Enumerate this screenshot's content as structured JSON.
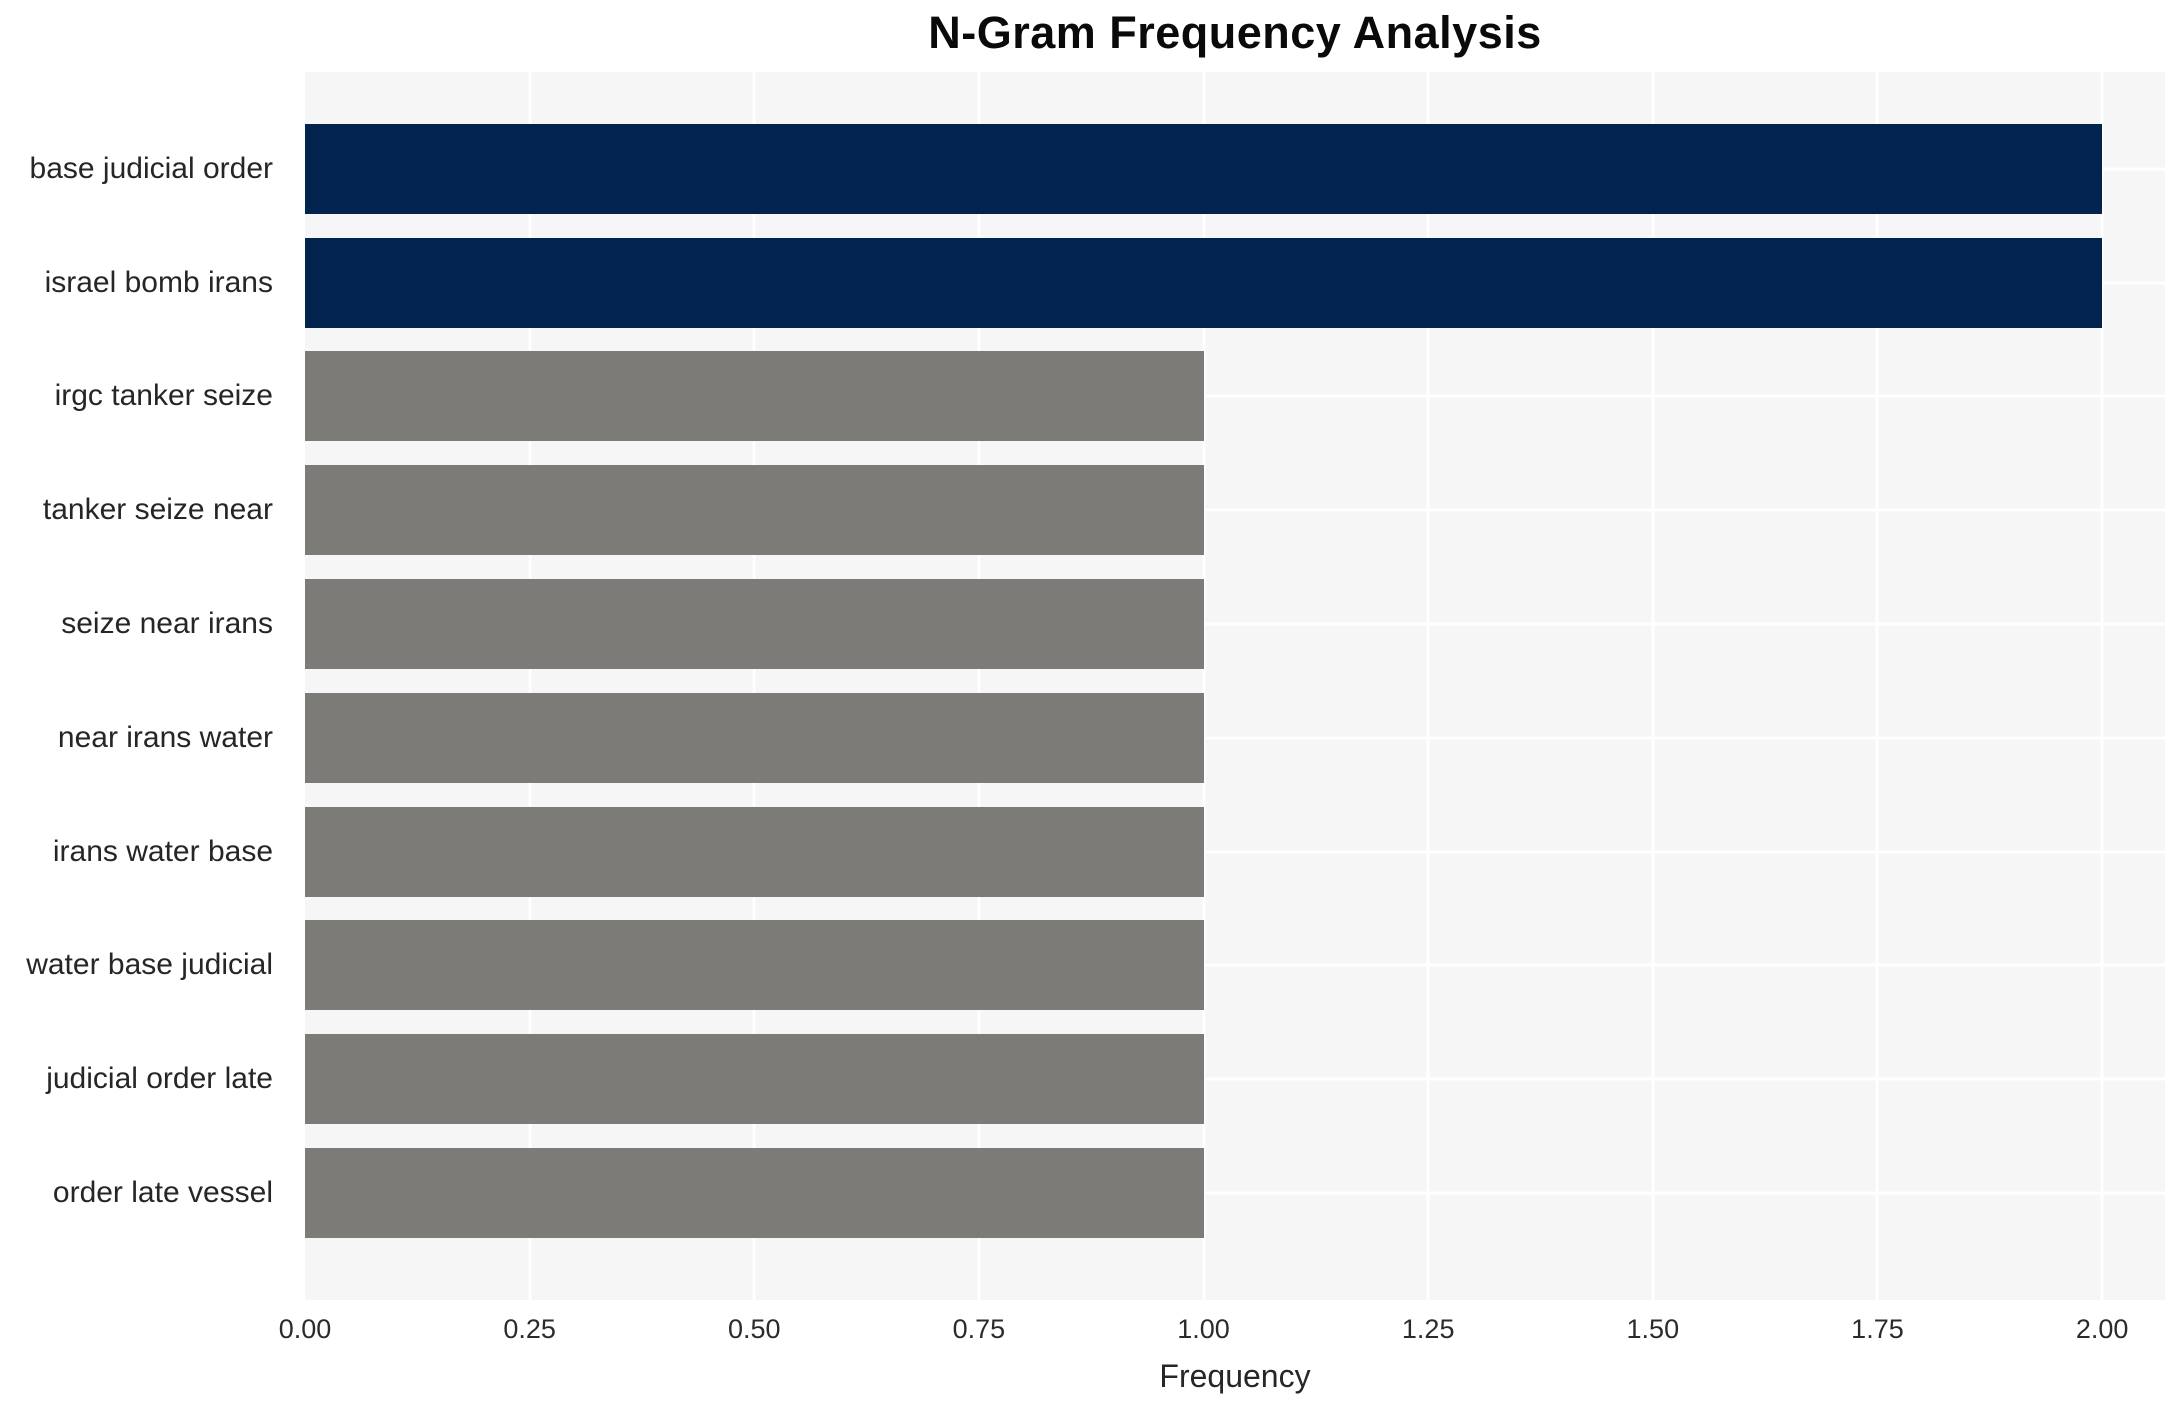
{
  "chart_data": {
    "type": "bar",
    "orientation": "horizontal",
    "title": "N-Gram Frequency Analysis",
    "xlabel": "Frequency",
    "ylabel": "",
    "categories": [
      "base judicial order",
      "israel bomb irans",
      "irgc tanker seize",
      "tanker seize near",
      "seize near irans",
      "near irans water",
      "irans water base",
      "water base judicial",
      "judicial order late",
      "order late vessel"
    ],
    "values": [
      2,
      2,
      1,
      1,
      1,
      1,
      1,
      1,
      1,
      1
    ],
    "bar_colors": [
      "#02234d",
      "#02234d",
      "#7c7b77",
      "#7c7b77",
      "#7c7b77",
      "#7c7b77",
      "#7c7b77",
      "#7c7b77",
      "#7c7b77",
      "#7c7b77"
    ],
    "xlim": [
      0,
      2.0
    ],
    "x_display_max": 2.07,
    "xticks": [
      {
        "value": 0.0,
        "label": "0.00"
      },
      {
        "value": 0.25,
        "label": "0.25"
      },
      {
        "value": 0.5,
        "label": "0.50"
      },
      {
        "value": 0.75,
        "label": "0.75"
      },
      {
        "value": 1.0,
        "label": "1.00"
      },
      {
        "value": 1.25,
        "label": "1.25"
      },
      {
        "value": 1.5,
        "label": "1.50"
      },
      {
        "value": 1.75,
        "label": "1.75"
      },
      {
        "value": 2.0,
        "label": "2.00"
      }
    ],
    "grid": true,
    "legend_position": "none",
    "colors": {
      "highlight_bar": "#02234d",
      "default_bar": "#7c7b77",
      "plot_background": "#f7f6f6",
      "gridline": "#ffffff",
      "figure_background": "#ffffff",
      "text": "#262626"
    }
  }
}
